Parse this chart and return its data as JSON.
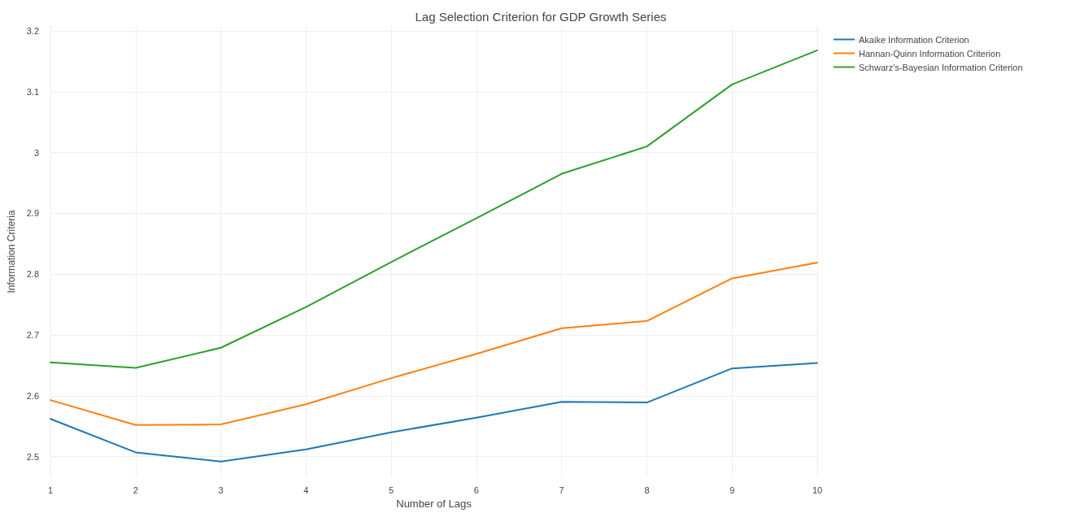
{
  "chart_data": {
    "type": "line",
    "title": "Lag Selection Criterion for GDP Growth Series",
    "xlabel": "Number of Lags",
    "ylabel": "Information Criteria",
    "x": [
      1,
      2,
      3,
      4,
      5,
      6,
      7,
      8,
      9,
      10
    ],
    "series": [
      {
        "name": "Akaike Information Criterion",
        "color": "#1f77b4",
        "values": [
          2.562,
          2.507,
          2.492,
          2.512,
          2.54,
          2.564,
          2.59,
          2.589,
          2.645,
          2.654
        ]
      },
      {
        "name": "Hannan-Quinn Information Criterion",
        "color": "#ff7f0e",
        "values": [
          2.593,
          2.552,
          2.553,
          2.586,
          2.629,
          2.669,
          2.711,
          2.723,
          2.793,
          2.819
        ]
      },
      {
        "name": "Schwarz’s-Bayesian Information Criterion",
        "color": "#2ca02c",
        "values": [
          2.655,
          2.646,
          2.679,
          2.746,
          2.82,
          2.892,
          2.965,
          3.01,
          3.112,
          3.168
        ]
      }
    ],
    "xlim": [
      1,
      10
    ],
    "xticks": [
      1,
      2,
      3,
      4,
      5,
      6,
      7,
      8,
      9,
      10
    ],
    "ylim": [
      2.466,
      3.208
    ],
    "yticks": [
      2.5,
      2.6,
      2.7,
      2.8,
      2.9,
      3,
      3.1,
      3.2
    ],
    "grid": true,
    "legend": "top right",
    "marker": "none",
    "line_style": "solid"
  }
}
